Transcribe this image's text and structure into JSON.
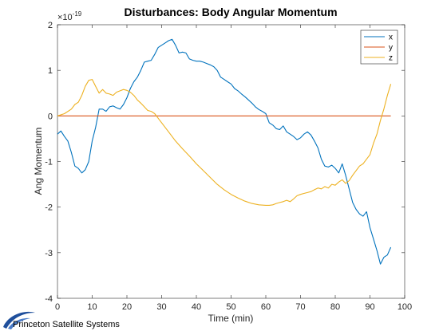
{
  "chart_data": {
    "type": "line",
    "title": "Disturbances: Body Angular Momentum",
    "xlabel": "Time (min)",
    "ylabel": "Ang Momentum",
    "y_exponent_label": "×10",
    "y_exponent_power": "-19",
    "xlim": [
      0,
      100
    ],
    "ylim": [
      -4,
      2
    ],
    "xticks": [
      "0",
      "10",
      "20",
      "30",
      "40",
      "50",
      "60",
      "70",
      "80",
      "90",
      "100"
    ],
    "yticks": [
      "-4",
      "-3",
      "-2",
      "-1",
      "0",
      "1",
      "2"
    ],
    "grid": false,
    "legend_position": "top-right",
    "series": [
      {
        "name": "x",
        "color": "#0072BD",
        "x": [
          0,
          1,
          2,
          3,
          4,
          5,
          6,
          7,
          8,
          9,
          10,
          11,
          12,
          13,
          14,
          15,
          16,
          17,
          18,
          19,
          20,
          21,
          22,
          23,
          24,
          25,
          26,
          27,
          28,
          29,
          30,
          31,
          32,
          33,
          34,
          35,
          36,
          37,
          38,
          39,
          40,
          41,
          42,
          43,
          44,
          45,
          46,
          47,
          48,
          49,
          50,
          51,
          52,
          53,
          54,
          55,
          56,
          57,
          58,
          59,
          60,
          61,
          62,
          63,
          64,
          65,
          66,
          67,
          68,
          69,
          70,
          71,
          72,
          73,
          74,
          75,
          76,
          77,
          78,
          79,
          80,
          81,
          82,
          83,
          84,
          85,
          86,
          87,
          88,
          89,
          90,
          91,
          92,
          93,
          94,
          95,
          96
        ],
        "values": [
          -0.4,
          -0.33,
          -0.45,
          -0.55,
          -0.8,
          -1.1,
          -1.15,
          -1.25,
          -1.18,
          -1.0,
          -0.55,
          -0.25,
          0.15,
          0.15,
          0.1,
          0.2,
          0.22,
          0.18,
          0.15,
          0.25,
          0.4,
          0.6,
          0.75,
          0.85,
          1.0,
          1.18,
          1.2,
          1.22,
          1.35,
          1.5,
          1.55,
          1.6,
          1.65,
          1.68,
          1.55,
          1.38,
          1.4,
          1.38,
          1.25,
          1.22,
          1.2,
          1.2,
          1.18,
          1.15,
          1.12,
          1.08,
          1.0,
          0.85,
          0.8,
          0.75,
          0.7,
          0.6,
          0.55,
          0.48,
          0.42,
          0.35,
          0.28,
          0.2,
          0.14,
          0.1,
          0.05,
          -0.15,
          -0.2,
          -0.28,
          -0.3,
          -0.22,
          -0.35,
          -0.4,
          -0.45,
          -0.52,
          -0.48,
          -0.4,
          -0.35,
          -0.42,
          -0.55,
          -0.7,
          -0.95,
          -1.1,
          -1.12,
          -1.08,
          -1.15,
          -1.25,
          -1.05,
          -1.3,
          -1.6,
          -1.9,
          -2.05,
          -2.15,
          -2.2,
          -2.1,
          -2.45,
          -2.7,
          -2.95,
          -3.25,
          -3.1,
          -3.05,
          -2.88
        ]
      },
      {
        "name": "y",
        "color": "#D95319",
        "x": [
          0,
          96
        ],
        "values": [
          0,
          0
        ]
      },
      {
        "name": "z",
        "color": "#EDB120",
        "x": [
          0,
          2,
          4,
          5,
          6,
          7,
          8,
          9,
          10,
          11,
          12,
          13,
          14,
          15,
          16,
          17,
          18,
          19,
          20,
          21,
          22,
          23,
          24,
          25,
          26,
          27,
          28,
          29,
          30,
          32,
          34,
          36,
          38,
          40,
          42,
          44,
          46,
          48,
          50,
          52,
          54,
          56,
          58,
          60,
          61,
          62,
          63,
          64,
          65,
          66,
          67,
          68,
          69,
          70,
          71,
          72,
          73,
          74,
          75,
          76,
          77,
          78,
          79,
          80,
          81,
          82,
          83,
          84,
          85,
          86,
          87,
          88,
          89,
          90,
          91,
          92,
          93,
          94,
          95,
          96
        ],
        "values": [
          0.0,
          0.05,
          0.15,
          0.25,
          0.3,
          0.45,
          0.65,
          0.78,
          0.8,
          0.65,
          0.5,
          0.58,
          0.5,
          0.48,
          0.45,
          0.52,
          0.55,
          0.58,
          0.56,
          0.52,
          0.45,
          0.35,
          0.28,
          0.2,
          0.12,
          0.1,
          0.05,
          -0.05,
          -0.15,
          -0.35,
          -0.55,
          -0.72,
          -0.88,
          -1.05,
          -1.2,
          -1.35,
          -1.5,
          -1.62,
          -1.72,
          -1.8,
          -1.87,
          -1.92,
          -1.95,
          -1.96,
          -1.96,
          -1.95,
          -1.92,
          -1.9,
          -1.88,
          -1.85,
          -1.88,
          -1.82,
          -1.75,
          -1.72,
          -1.7,
          -1.68,
          -1.66,
          -1.62,
          -1.58,
          -1.6,
          -1.55,
          -1.58,
          -1.5,
          -1.52,
          -1.45,
          -1.4,
          -1.48,
          -1.42,
          -1.3,
          -1.2,
          -1.1,
          -1.05,
          -0.95,
          -0.85,
          -0.6,
          -0.4,
          -0.1,
          0.15,
          0.45,
          0.7
        ]
      }
    ]
  },
  "logo": {
    "text": "Princeton Satellite Systems"
  }
}
